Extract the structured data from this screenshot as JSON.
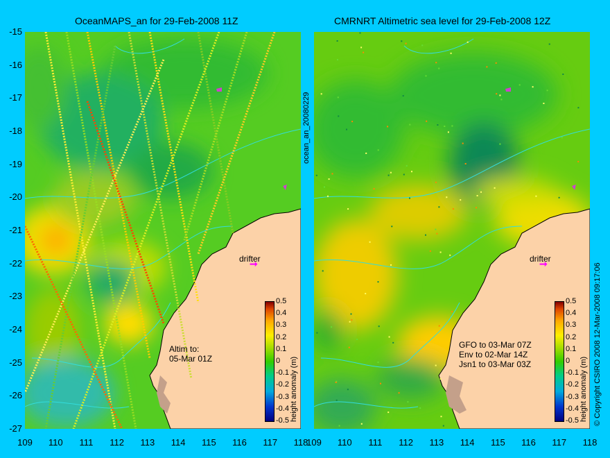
{
  "left_panel": {
    "title": "OceanMAPS_an for 29-Feb-2008 11Z",
    "side_label": "ocean_an_20080229",
    "annotation_line1": "Altim to:",
    "annotation_line2": "05-Mar 01Z",
    "drifter_label": "drifter",
    "colorbar_label": "height anomaly (m)"
  },
  "right_panel": {
    "title": "CMRNRT Altimetric sea level  for 29-Feb-2008 12Z",
    "side_label": "© Copyright CSIRO 2008  12-Mar-2008 09:17:06",
    "annotation_line1": "GFO to 03-Mar 07Z",
    "annotation_line2": "Env to 02-Mar 14Z",
    "annotation_line3": "Jsn1 to 03-Mar 03Z",
    "drifter_label": "drifter",
    "colorbar_label": "height anomaly (m)"
  },
  "y_ticks": [
    "-15",
    "-16",
    "-17",
    "-18",
    "-19",
    "-20",
    "-21",
    "-22",
    "-23",
    "-24",
    "-25",
    "-26",
    "-27"
  ],
  "x_ticks": [
    "109",
    "110",
    "111",
    "112",
    "113",
    "114",
    "115",
    "116",
    "117",
    "118"
  ],
  "colorbar_ticks": [
    "0.5",
    "0.4",
    "0.3",
    "0.2",
    "0.1",
    "0",
    "-0.1",
    "-0.2",
    "-0.3",
    "-0.4",
    "-0.5"
  ],
  "colors": {
    "background": "#00ccff",
    "land": "#fcd2a8",
    "ocean_base": "#44cc22",
    "drifter": "#ff00ff",
    "contour": "#33dddd"
  },
  "icons": [
    "drifter-arrow-icon"
  ]
}
